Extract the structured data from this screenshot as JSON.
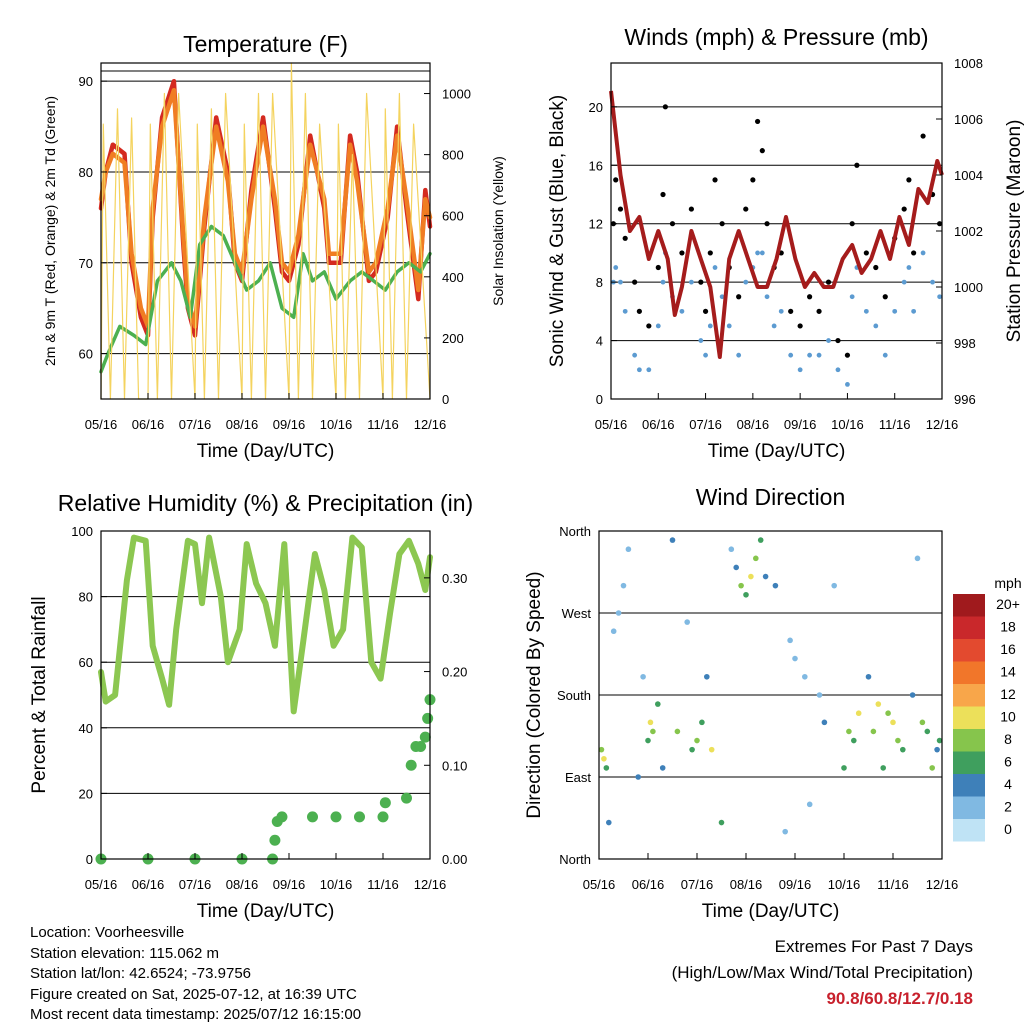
{
  "chart_data": [
    {
      "type": "line",
      "title": "Temperature (F)",
      "xlabel": "Time (Day/UTC)",
      "ylabel": "2m & 9m T (Red, Orange) & 2m Td (Green)",
      "y2label": "Solar Insolation (Yellow)",
      "x_ticks": [
        "05/16",
        "06/16",
        "07/16",
        "08/16",
        "09/16",
        "10/16",
        "11/16",
        "12/16"
      ],
      "xlim": [
        0,
        7
      ],
      "ylim": [
        55,
        92
      ],
      "y_ticks": [
        60,
        70,
        80,
        90
      ],
      "y2lim": [
        0,
        1100
      ],
      "y2_ticks": [
        0,
        200,
        400,
        600,
        800,
        1000
      ],
      "series": [
        {
          "color": "#d42a20",
          "x": [
            0,
            0.1,
            0.25,
            0.5,
            0.65,
            0.85,
            1,
            1.1,
            1.3,
            1.55,
            1.75,
            1.85,
            2,
            2.2,
            2.45,
            2.7,
            2.85,
            3,
            3.2,
            3.45,
            3.7,
            3.85,
            4,
            4.2,
            4.45,
            4.75,
            4.85,
            5.1,
            5.3,
            5.45,
            5.7,
            5.85,
            6.1,
            6.3,
            6.5,
            6.75,
            6.9,
            7
          ],
          "y": [
            76,
            80,
            83,
            82,
            70,
            64,
            62,
            75,
            86,
            90,
            72,
            65,
            62,
            74,
            86,
            80,
            70,
            68,
            78,
            86,
            76,
            69,
            68,
            72,
            84,
            76,
            70,
            70,
            84,
            80,
            68,
            69,
            75,
            85,
            76,
            66,
            78,
            74
          ]
        },
        {
          "color": "#f07d23",
          "x": [
            0,
            0.1,
            0.25,
            0.5,
            0.65,
            0.85,
            1,
            1.1,
            1.3,
            1.55,
            1.75,
            1.85,
            2,
            2.2,
            2.45,
            2.7,
            2.85,
            3,
            3.2,
            3.45,
            3.7,
            3.85,
            4,
            4.2,
            4.45,
            4.75,
            4.85,
            5.1,
            5.3,
            5.45,
            5.7,
            5.85,
            6.1,
            6.3,
            6.5,
            6.75,
            6.9,
            7
          ],
          "y": [
            77,
            80,
            82,
            81,
            71,
            65,
            63,
            76,
            85,
            89,
            73,
            66,
            63,
            75,
            85,
            79,
            71,
            69,
            77,
            85,
            77,
            70,
            69,
            73,
            83,
            77,
            71,
            71,
            83,
            79,
            69,
            70,
            76,
            84,
            77,
            67,
            77,
            75
          ]
        },
        {
          "color": "#4cb050",
          "x": [
            0,
            0.15,
            0.4,
            0.7,
            0.95,
            1.2,
            1.5,
            1.7,
            1.9,
            2.1,
            2.35,
            2.6,
            2.85,
            3.1,
            3.35,
            3.6,
            3.85,
            4.1,
            4.3,
            4.5,
            4.75,
            5.0,
            5.3,
            5.55,
            5.8,
            6.05,
            6.3,
            6.55,
            6.8,
            7
          ],
          "y": [
            58,
            60,
            63,
            62,
            61,
            68,
            70,
            68,
            64,
            72,
            74,
            73,
            70,
            67,
            68,
            70,
            65,
            64,
            71,
            68,
            69,
            66,
            68,
            69,
            68,
            67,
            69,
            70,
            69,
            71
          ]
        },
        {
          "color": "#f4d35e",
          "x": [
            0,
            0.05,
            0.2,
            0.35,
            0.5,
            0.65,
            0.8,
            1.0,
            1.05,
            1.2,
            1.35,
            1.5,
            1.65,
            2.0,
            2.05,
            2.2,
            2.35,
            2.5,
            2.65,
            3.0,
            3.05,
            3.2,
            3.35,
            3.5,
            3.65,
            4.0,
            4.05,
            4.2,
            4.35,
            4.5,
            4.65,
            5.0,
            5.05,
            5.2,
            5.35,
            5.5,
            5.65,
            6.0,
            6.05,
            6.2,
            6.35,
            6.5,
            6.65,
            7.0
          ],
          "y2": [
            0,
            900,
            0,
            950,
            0,
            920,
            0,
            0,
            900,
            0,
            1000,
            0,
            1000,
            0,
            900,
            0,
            950,
            0,
            1000,
            0,
            900,
            0,
            1000,
            0,
            1000,
            0,
            1100,
            0,
            1000,
            0,
            900,
            0,
            900,
            0,
            800,
            0,
            1000,
            0,
            950,
            0,
            1000,
            0,
            900,
            0
          ]
        }
      ]
    },
    {
      "type": "scatter",
      "title": "Winds (mph) & Pressure (mb)",
      "xlabel": "Time (Day/UTC)",
      "ylabel": "Sonic Wind & Gust (Blue, Black)",
      "y2label": "Station Pressure (Maroon)",
      "x_ticks": [
        "05/16",
        "06/16",
        "07/16",
        "08/16",
        "09/16",
        "10/16",
        "11/16",
        "12/16"
      ],
      "xlim": [
        0,
        7
      ],
      "ylim": [
        0,
        23
      ],
      "y_ticks": [
        0,
        4,
        8,
        12,
        16,
        20
      ],
      "y2lim": [
        996,
        1008
      ],
      "y2_ticks": [
        996,
        998,
        1000,
        1002,
        1004,
        1006,
        1008
      ],
      "series": [
        {
          "color": "#000000",
          "x": [
            0.05,
            0.1,
            0.2,
            0.3,
            0.5,
            0.6,
            0.8,
            1.0,
            1.1,
            1.15,
            1.3,
            1.5,
            1.7,
            1.9,
            2.0,
            2.1,
            2.2,
            2.35,
            2.5,
            2.7,
            2.85,
            3.0,
            3.1,
            3.2,
            3.3,
            3.45,
            3.6,
            3.8,
            4.0,
            4.2,
            4.4,
            4.6,
            4.8,
            5.0,
            5.1,
            5.2,
            5.4,
            5.6,
            5.8,
            6.0,
            6.2,
            6.3,
            6.4,
            6.6,
            6.8,
            6.95
          ],
          "y": [
            12,
            15,
            13,
            11,
            8,
            6,
            5,
            9,
            14,
            20,
            12,
            10,
            13,
            8,
            6,
            10,
            15,
            12,
            9,
            7,
            13,
            15,
            19,
            17,
            12,
            9,
            10,
            6,
            5,
            7,
            6,
            8,
            4,
            3,
            12,
            16,
            10,
            9,
            7,
            11,
            13,
            15,
            10,
            18,
            14,
            12
          ]
        },
        {
          "color": "#5c9bd1",
          "x": [
            0.05,
            0.1,
            0.2,
            0.3,
            0.5,
            0.6,
            0.8,
            1.0,
            1.1,
            1.15,
            1.3,
            1.5,
            1.7,
            1.9,
            2.0,
            2.1,
            2.2,
            2.35,
            2.5,
            2.7,
            2.85,
            3.0,
            3.1,
            3.2,
            3.3,
            3.45,
            3.6,
            3.8,
            4.0,
            4.2,
            4.4,
            4.6,
            4.8,
            5.0,
            5.1,
            5.2,
            5.4,
            5.6,
            5.8,
            6.0,
            6.2,
            6.3,
            6.4,
            6.6,
            6.8,
            6.95
          ],
          "y": [
            8,
            9,
            8,
            6,
            3,
            2,
            2,
            5,
            8,
            10,
            7,
            6,
            8,
            4,
            3,
            5,
            9,
            7,
            5,
            3,
            8,
            9,
            10,
            10,
            7,
            5,
            6,
            3,
            2,
            3,
            3,
            4,
            2,
            1,
            7,
            9,
            6,
            5,
            3,
            6,
            8,
            9,
            6,
            10,
            8,
            7
          ]
        },
        {
          "color": "#a51c1c",
          "x": [
            0,
            0.2,
            0.4,
            0.6,
            0.8,
            1.0,
            1.2,
            1.35,
            1.5,
            1.7,
            1.9,
            2.1,
            2.3,
            2.5,
            2.7,
            2.9,
            3.1,
            3.3,
            3.5,
            3.7,
            3.9,
            4.1,
            4.3,
            4.5,
            4.7,
            4.9,
            5.1,
            5.3,
            5.5,
            5.7,
            5.9,
            6.1,
            6.3,
            6.5,
            6.7,
            6.9,
            7
          ],
          "y2": [
            1007,
            1004,
            1002,
            1002.5,
            1001,
            1002,
            1001,
            999,
            1000,
            1002,
            1001,
            1000,
            997.5,
            1001,
            1002,
            1001,
            1000,
            1000,
            1001,
            1002.5,
            1001,
            1000,
            1000.5,
            1000,
            1000,
            1001,
            1001.5,
            1000.5,
            1001,
            1002,
            1001,
            1002.5,
            1001.5,
            1003.5,
            1003,
            1004.5,
            1004
          ]
        }
      ]
    },
    {
      "type": "line",
      "title": "Relative Humidity (%) & Precipitation (in)",
      "xlabel": "Time (Day/UTC)",
      "ylabel": "Percent & Total Rainfall",
      "x_ticks": [
        "05/16",
        "06/16",
        "07/16",
        "08/16",
        "09/16",
        "10/16",
        "11/16",
        "12/16"
      ],
      "xlim": [
        0,
        7
      ],
      "ylim": [
        0,
        100
      ],
      "y_ticks": [
        0,
        20,
        40,
        60,
        80,
        100
      ],
      "y2lim": [
        0,
        0.35
      ],
      "y2_ticks": [
        "0.00",
        "0.10",
        "0.20",
        "0.30"
      ],
      "series": [
        {
          "color": "#8cc751",
          "x": [
            0,
            0.1,
            0.3,
            0.55,
            0.7,
            0.95,
            1.1,
            1.3,
            1.45,
            1.6,
            1.85,
            2.0,
            2.15,
            2.3,
            2.55,
            2.7,
            2.95,
            3.1,
            3.3,
            3.5,
            3.7,
            3.9,
            4.1,
            4.3,
            4.55,
            4.75,
            4.95,
            5.15,
            5.35,
            5.55,
            5.75,
            5.95,
            6.15,
            6.35,
            6.55,
            6.75,
            6.9,
            7
          ],
          "y": [
            57,
            48,
            50,
            85,
            98,
            97,
            65,
            55,
            47,
            70,
            97,
            96,
            78,
            98,
            80,
            60,
            70,
            96,
            84,
            78,
            65,
            96,
            45,
            66,
            93,
            82,
            65,
            70,
            98,
            95,
            60,
            55,
            75,
            93,
            97,
            90,
            82,
            92
          ]
        },
        {
          "color": "#4cb050",
          "x": [
            0,
            1,
            2,
            3,
            3.65,
            3.7,
            3.75,
            3.85,
            4.5,
            5.0,
            5.5,
            6.0,
            6.05,
            6.5,
            6.6,
            6.7,
            6.8,
            6.9,
            6.95,
            7
          ],
          "y2": [
            0,
            0,
            0,
            0,
            0,
            0.02,
            0.04,
            0.045,
            0.045,
            0.045,
            0.045,
            0.045,
            0.06,
            0.065,
            0.1,
            0.12,
            0.12,
            0.13,
            0.15,
            0.17
          ]
        }
      ]
    },
    {
      "type": "scatter",
      "title": "Wind Direction",
      "xlabel": "Time (Day/UTC)",
      "ylabel": "Direction (Colored By Speed)",
      "x_ticks": [
        "05/16",
        "06/16",
        "07/16",
        "08/16",
        "09/16",
        "10/16",
        "11/16",
        "12/16"
      ],
      "xlim": [
        0,
        7
      ],
      "ylim": [
        0,
        360
      ],
      "y_ticks": [
        "North",
        "East",
        "South",
        "West",
        "North"
      ],
      "legend": {
        "title": "mph",
        "placement": "right",
        "labels": [
          "20+",
          "18",
          "16",
          "14",
          "12",
          "10",
          "8",
          "6",
          "4",
          "2",
          "0"
        ],
        "colors": [
          "#a01a1d",
          "#c9282b",
          "#e34a2f",
          "#f1762a",
          "#f8a64a",
          "#ece05a",
          "#86c54c",
          "#3f9f5e",
          "#3e80b9",
          "#80b9e2",
          "#bfe3f5"
        ]
      },
      "series": [
        {
          "x": [
            0.05,
            0.1,
            0.15,
            0.2,
            0.3,
            0.4,
            0.5,
            0.6,
            0.8,
            0.9,
            1.0,
            1.05,
            1.1,
            1.2,
            1.3,
            1.5,
            1.6,
            1.8,
            1.9,
            2.0,
            2.1,
            2.2,
            2.3,
            2.5,
            2.7,
            2.8,
            2.9,
            3.0,
            3.1,
            3.2,
            3.3,
            3.4,
            3.6,
            3.8,
            3.9,
            4.0,
            4.2,
            4.3,
            4.5,
            4.6,
            4.8,
            5.0,
            5.1,
            5.2,
            5.3,
            5.5,
            5.6,
            5.7,
            5.8,
            5.9,
            6.0,
            6.1,
            6.2,
            6.4,
            6.5,
            6.6,
            6.7,
            6.8,
            6.9,
            6.95
          ],
          "y": [
            120,
            110,
            100,
            40,
            250,
            270,
            300,
            340,
            90,
            200,
            130,
            150,
            140,
            170,
            100,
            350,
            140,
            260,
            120,
            130,
            150,
            200,
            120,
            40,
            340,
            320,
            300,
            290,
            310,
            330,
            350,
            310,
            300,
            30,
            240,
            220,
            200,
            60,
            180,
            150,
            300,
            100,
            140,
            130,
            160,
            200,
            140,
            170,
            100,
            160,
            150,
            130,
            120,
            180,
            330,
            150,
            140,
            100,
            120,
            130
          ],
          "speeds": [
            8,
            10,
            6,
            4,
            2,
            2,
            2,
            2,
            4,
            2,
            6,
            10,
            8,
            6,
            4,
            4,
            8,
            2,
            6,
            8,
            6,
            4,
            10,
            6,
            2,
            4,
            8,
            6,
            10,
            8,
            6,
            4,
            4,
            2,
            2,
            2,
            2,
            2,
            2,
            4,
            2,
            6,
            8,
            6,
            10,
            4,
            8,
            10,
            6,
            8,
            10,
            8,
            6,
            4,
            2,
            8,
            6,
            8,
            4,
            6
          ]
        }
      ]
    }
  ],
  "info": {
    "location": "Location: Voorheesville",
    "elevation": "Station elevation: 115.062 m",
    "latlon": "Station lat/lon: 42.6524; -73.9756",
    "created": "Figure created on Sat, 2025-07-12, at 16:39 UTC",
    "recent": "Most recent data timestamp: 2025/07/12 16:15:00"
  },
  "extremes": {
    "line1": "Extremes For Past 7 Days",
    "line2": "(High/Low/Max Wind/Total Precipitation)",
    "values": "90.8/60.8/12.7/0.18"
  }
}
